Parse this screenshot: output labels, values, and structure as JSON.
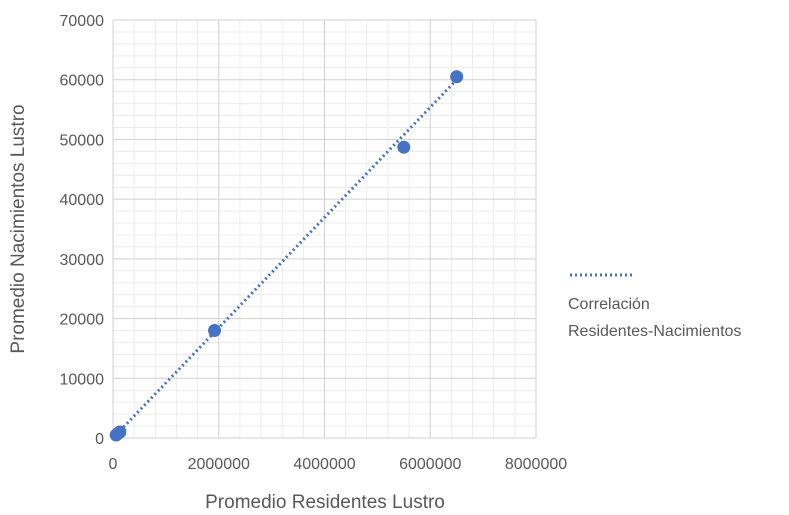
{
  "chart_data": {
    "type": "scatter",
    "title": "",
    "xlabel": "Promedio Residentes Lustro",
    "ylabel": "Promedio Nacimientos Lustro",
    "xlim": [
      0,
      8000000
    ],
    "ylim": [
      0,
      70000
    ],
    "x_ticks": [
      "0",
      "2000000",
      "4000000",
      "6000000",
      "8000000"
    ],
    "y_ticks": [
      "0",
      "10000",
      "20000",
      "30000",
      "40000",
      "50000",
      "60000",
      "70000"
    ],
    "grid": true,
    "legend_position": "right",
    "series": [
      {
        "x": [
          60000,
          100000,
          130000,
          1920000,
          5500000,
          6500000
        ],
        "y": [
          500,
          800,
          1000,
          18000,
          48700,
          60500
        ],
        "color": "#4472C4",
        "marker": "circle"
      }
    ],
    "trendline": {
      "name": "Correlación Residentes-Nacimientos",
      "legend_lines": [
        "Correlación",
        "Residentes-Nacimientos"
      ],
      "type": "linear",
      "x": [
        0,
        6500000
      ],
      "y": [
        0,
        60000
      ],
      "color": "#4472C4",
      "style": "dotted"
    }
  }
}
